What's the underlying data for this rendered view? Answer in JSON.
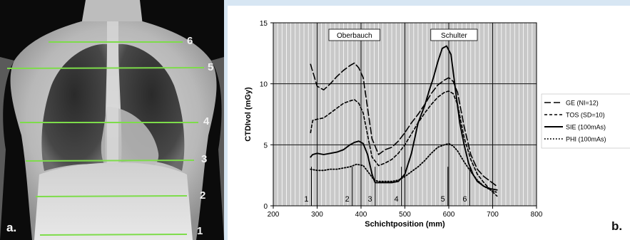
{
  "panel_a": {
    "label": "a.",
    "line_numbers": [
      "6",
      "5",
      "4",
      "3",
      "2",
      "1"
    ]
  },
  "panel_b": {
    "label": "b."
  },
  "colors": {
    "frame_background": "#d7e6f3",
    "scan_lines": "#7ddc4a",
    "plot_background": "#c8c8c8",
    "grid": "#ffffff"
  },
  "chart_data": {
    "type": "line",
    "xlabel": "Schichtposition (mm)",
    "ylabel": "CTDIvol (mGy)",
    "xlim": [
      200,
      800
    ],
    "ylim": [
      0,
      15
    ],
    "x_ticks": [
      "200",
      "300",
      "400",
      "500",
      "600",
      "700",
      "800"
    ],
    "y_ticks": [
      "0",
      "5",
      "10",
      "15"
    ],
    "grid": "vertical every 10 mm, horizontal at 5 mGy",
    "legend_position": "right",
    "region_labels": [
      "Oberbauch",
      "Schulter"
    ],
    "region_label_x": [
      385,
      612
    ],
    "position_markers": [
      {
        "label": "1",
        "x": 287
      },
      {
        "label": "2",
        "x": 380
      },
      {
        "label": "3",
        "x": 432
      },
      {
        "label": "4",
        "x": 492
      },
      {
        "label": "5",
        "x": 598
      },
      {
        "label": "6",
        "x": 648
      }
    ],
    "series": [
      {
        "name": "GE (NI=12)",
        "style": "long-dash",
        "x": [
          285,
          290,
          300,
          315,
          330,
          345,
          360,
          375,
          385,
          395,
          405,
          415,
          425,
          440,
          455,
          470,
          485,
          500,
          515,
          530,
          545,
          560,
          575,
          590,
          600,
          610,
          620,
          635,
          650,
          665,
          680,
          695,
          710
        ],
        "y": [
          11.6,
          11.0,
          9.8,
          9.5,
          10.0,
          10.6,
          11.1,
          11.5,
          11.7,
          11.3,
          10.5,
          8.0,
          5.5,
          4.2,
          4.6,
          4.8,
          5.3,
          6.0,
          6.8,
          7.5,
          8.3,
          9.2,
          9.9,
          10.3,
          10.5,
          10.2,
          9.3,
          6.5,
          4.2,
          3.0,
          2.4,
          2.0,
          1.6
        ]
      },
      {
        "name": "TOS (SD=10)",
        "style": "short-dash",
        "x": [
          285,
          290,
          300,
          315,
          330,
          345,
          360,
          375,
          385,
          395,
          405,
          415,
          425,
          440,
          455,
          470,
          485,
          500,
          515,
          530,
          545,
          560,
          575,
          590,
          600,
          610,
          620,
          635,
          650,
          665,
          680,
          695,
          710
        ],
        "y": [
          6.0,
          7.0,
          7.1,
          7.2,
          7.6,
          8.0,
          8.4,
          8.6,
          8.7,
          8.4,
          7.6,
          5.8,
          4.0,
          3.3,
          3.5,
          3.8,
          4.3,
          5.0,
          5.9,
          6.8,
          7.6,
          8.3,
          8.9,
          9.3,
          9.4,
          9.2,
          8.3,
          5.6,
          3.8,
          2.6,
          1.9,
          1.3,
          0.8
        ]
      },
      {
        "name": "SIE (100mAs)",
        "style": "solid",
        "x": [
          285,
          290,
          300,
          315,
          330,
          345,
          360,
          375,
          385,
          395,
          405,
          415,
          425,
          432,
          440,
          455,
          470,
          485,
          500,
          515,
          530,
          545,
          555,
          565,
          575,
          585,
          595,
          605,
          615,
          625,
          635,
          645,
          655,
          665,
          680,
          695,
          710
        ],
        "y": [
          4.0,
          4.2,
          4.3,
          4.2,
          4.3,
          4.4,
          4.6,
          5.0,
          5.2,
          5.3,
          5.1,
          4.2,
          2.6,
          1.9,
          1.9,
          1.9,
          1.9,
          2.0,
          2.6,
          4.3,
          6.8,
          8.2,
          9.4,
          10.5,
          11.8,
          12.9,
          13.1,
          12.4,
          9.6,
          6.8,
          5.0,
          3.5,
          2.6,
          2.0,
          1.6,
          1.4,
          1.3
        ]
      },
      {
        "name": "PHI (100mAs)",
        "style": "dotted",
        "x": [
          285,
          300,
          315,
          330,
          345,
          360,
          375,
          390,
          405,
          420,
          430,
          440,
          455,
          470,
          485,
          500,
          515,
          530,
          545,
          560,
          575,
          590,
          600,
          610,
          620,
          635,
          650,
          665,
          680,
          695,
          710
        ],
        "y": [
          3.0,
          2.9,
          2.9,
          3.0,
          3.0,
          3.1,
          3.2,
          3.4,
          3.3,
          2.6,
          2.1,
          2.0,
          2.0,
          2.0,
          2.1,
          2.4,
          2.8,
          3.2,
          3.7,
          4.3,
          4.8,
          5.0,
          5.1,
          4.9,
          4.5,
          3.6,
          2.8,
          2.1,
          1.6,
          1.3,
          1.1
        ]
      }
    ]
  }
}
